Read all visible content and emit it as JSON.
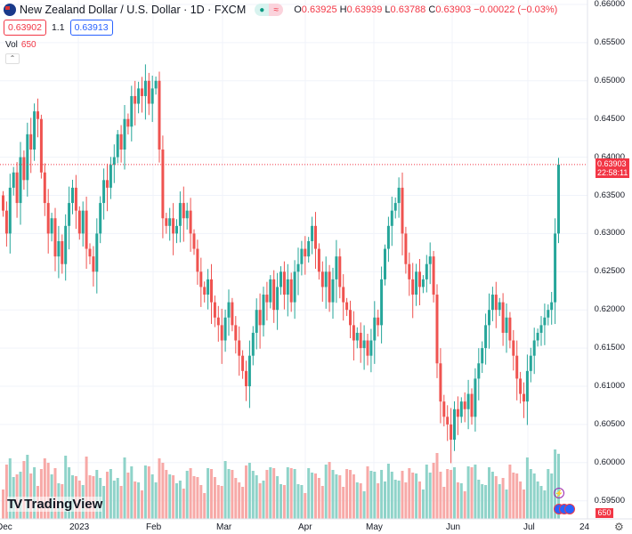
{
  "header": {
    "title": "New Zealand Dollar / U.S. Dollar · 1D · FXCM",
    "ohlc": {
      "o_label": "O",
      "o": "0.63925",
      "h_label": "H",
      "h": "0.63939",
      "l_label": "L",
      "l": "0.63788",
      "c_label": "C",
      "c": "0.63903",
      "change": "−0.00022 (−0.03%)"
    },
    "bid": "0.63902",
    "spread": "1.1",
    "ask": "0.63913",
    "vol_label": "Vol",
    "vol_value": "650"
  },
  "price_axis": {
    "labels": [
      "0.66000",
      "0.65500",
      "0.65000",
      "0.64500",
      "0.64000",
      "0.63500",
      "0.63000",
      "0.62500",
      "0.62000",
      "0.61500",
      "0.61000",
      "0.60500",
      "0.60000",
      "0.59500"
    ],
    "current_price": "0.63903",
    "countdown": "22:58:11",
    "volume_tag": "650"
  },
  "time_axis": {
    "labels": [
      "Dec",
      "2023",
      "Feb",
      "Mar",
      "Apr",
      "May",
      "Jun",
      "Jul",
      "24"
    ]
  },
  "logo": {
    "text": "TradingView"
  },
  "colors": {
    "up": "#26a69a",
    "down": "#ef5350",
    "up_vol": "#8fd3c9",
    "down_vol": "#f7a9a7"
  },
  "chart_data": {
    "type": "candlestick",
    "title": "NZD/USD 1D FXCM",
    "ylim": [
      0.595,
      0.66
    ],
    "closes": [
      0.633,
      0.63,
      0.636,
      0.638,
      0.634,
      0.64,
      0.637,
      0.643,
      0.641,
      0.646,
      0.645,
      0.638,
      0.634,
      0.63,
      0.632,
      0.627,
      0.629,
      0.626,
      0.631,
      0.634,
      0.636,
      0.633,
      0.63,
      0.633,
      0.628,
      0.627,
      0.625,
      0.63,
      0.634,
      0.637,
      0.636,
      0.639,
      0.64,
      0.643,
      0.641,
      0.645,
      0.644,
      0.648,
      0.647,
      0.649,
      0.648,
      0.65,
      0.647,
      0.649,
      0.65,
      0.641,
      0.632,
      0.631,
      0.632,
      0.63,
      0.631,
      0.634,
      0.632,
      0.633,
      0.63,
      0.628,
      0.625,
      0.623,
      0.622,
      0.624,
      0.621,
      0.619,
      0.618,
      0.616,
      0.619,
      0.621,
      0.618,
      0.616,
      0.614,
      0.612,
      0.61,
      0.614,
      0.617,
      0.62,
      0.618,
      0.622,
      0.621,
      0.624,
      0.62,
      0.623,
      0.625,
      0.622,
      0.624,
      0.621,
      0.625,
      0.626,
      0.628,
      0.627,
      0.629,
      0.631,
      0.628,
      0.625,
      0.623,
      0.625,
      0.621,
      0.624,
      0.627,
      0.623,
      0.621,
      0.62,
      0.618,
      0.616,
      0.617,
      0.615,
      0.616,
      0.614,
      0.616,
      0.619,
      0.618,
      0.624,
      0.628,
      0.631,
      0.633,
      0.634,
      0.636,
      0.63,
      0.626,
      0.624,
      0.622,
      0.625,
      0.623,
      0.624,
      0.626,
      0.627,
      0.622,
      0.613,
      0.608,
      0.606,
      0.605,
      0.603,
      0.607,
      0.606,
      0.608,
      0.607,
      0.609,
      0.606,
      0.611,
      0.613,
      0.615,
      0.618,
      0.62,
      0.622,
      0.62,
      0.621,
      0.617,
      0.619,
      0.616,
      0.614,
      0.611,
      0.609,
      0.608,
      0.612,
      0.614,
      0.616,
      0.617,
      0.618,
      0.619,
      0.62,
      0.621,
      0.63,
      0.63903
    ]
  }
}
